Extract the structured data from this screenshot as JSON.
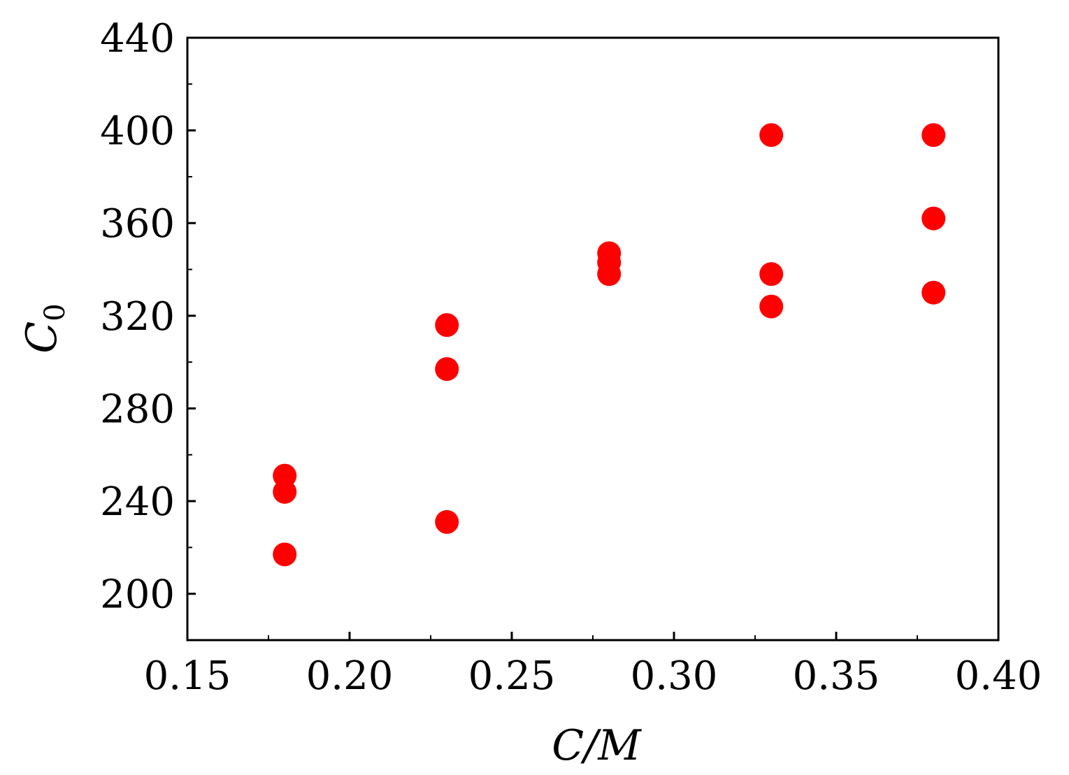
{
  "chart_data": {
    "type": "scatter",
    "title": "",
    "xlabel": "C/M",
    "ylabel": "C",
    "ylabel_subscript": "0",
    "xlim": [
      0.15,
      0.4
    ],
    "ylim": [
      180,
      440
    ],
    "x_ticks": [
      "0.15",
      "0.20",
      "0.25",
      "0.30",
      "0.35",
      "0.40"
    ],
    "y_ticks": [
      "200",
      "240",
      "280",
      "320",
      "360",
      "400",
      "440"
    ],
    "grid": false,
    "marker_color": "#ff0000",
    "series": [
      {
        "points": [
          {
            "x": 0.18,
            "y": 251
          },
          {
            "x": 0.18,
            "y": 244
          },
          {
            "x": 0.18,
            "y": 217
          },
          {
            "x": 0.23,
            "y": 316
          },
          {
            "x": 0.23,
            "y": 297
          },
          {
            "x": 0.23,
            "y": 231
          },
          {
            "x": 0.28,
            "y": 347
          },
          {
            "x": 0.28,
            "y": 343
          },
          {
            "x": 0.28,
            "y": 338
          },
          {
            "x": 0.33,
            "y": 398
          },
          {
            "x": 0.33,
            "y": 338
          },
          {
            "x": 0.33,
            "y": 324
          },
          {
            "x": 0.38,
            "y": 398
          },
          {
            "x": 0.38,
            "y": 362
          },
          {
            "x": 0.38,
            "y": 330
          }
        ]
      }
    ]
  }
}
